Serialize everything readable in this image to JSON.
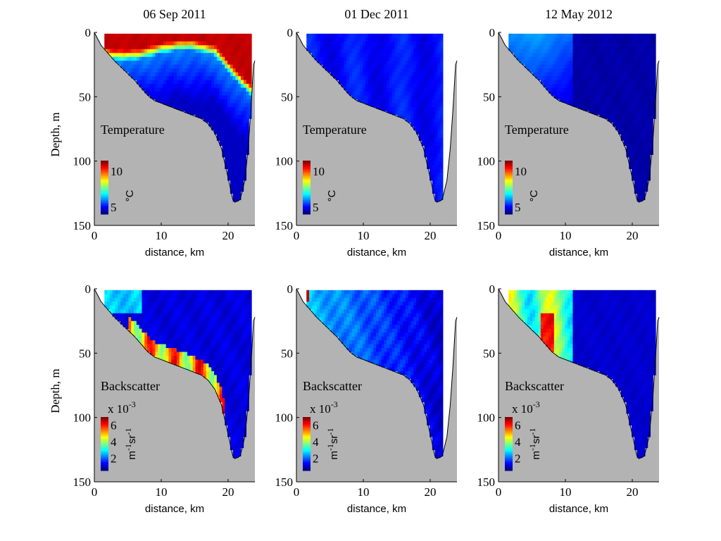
{
  "colors": {
    "land": "#b3b3b3",
    "nodata": "#ffffff",
    "colormap": "jet"
  },
  "chart_data": [
    {
      "type": "heatmap",
      "row": 0,
      "col": 0,
      "title": "06 Sep 2011",
      "variable": "temperature",
      "panel_label": "Temperature",
      "xlabel": "distance, km",
      "ylabel": "Depth, m",
      "xlim": [
        0,
        24
      ],
      "ylim": [
        150,
        0
      ],
      "xticks": [
        "0",
        "10",
        "20"
      ],
      "yticks": [
        "0",
        "50",
        "100",
        "150"
      ],
      "colorbar": {
        "ticks": [
          "10",
          "5"
        ],
        "tick_values": [
          10,
          5
        ],
        "range": [
          4,
          11.5
        ],
        "unit": "°C",
        "multiplier": "",
        "multiplier_exp": ""
      },
      "data_extent_km": [
        1.5,
        23.2
      ],
      "samples": [
        {
          "x": 5,
          "z": 5,
          "v": 11
        },
        {
          "x": 12,
          "z": 5,
          "v": 11
        },
        {
          "x": 20,
          "z": 5,
          "v": 11
        },
        {
          "x": 10,
          "z": 12,
          "v": 8
        },
        {
          "x": 10,
          "z": 20,
          "v": 6
        },
        {
          "x": 15,
          "z": 40,
          "v": 5.2
        },
        {
          "x": 20,
          "z": 80,
          "v": 4.8
        },
        {
          "x": 21,
          "z": 120,
          "v": 4.6
        }
      ]
    },
    {
      "type": "heatmap",
      "row": 0,
      "col": 1,
      "title": "01 Dec 2011",
      "variable": "temperature",
      "panel_label": "Temperature",
      "xlabel": "distance, km",
      "ylabel": "",
      "xlim": [
        0,
        24
      ],
      "ylim": [
        150,
        0
      ],
      "xticks": [
        "0",
        "10",
        "20"
      ],
      "yticks": [
        "0",
        "50",
        "100",
        "150"
      ],
      "colorbar": {
        "ticks": [
          "10",
          "5"
        ],
        "tick_values": [
          10,
          5
        ],
        "range": [
          4,
          11.5
        ],
        "unit": "°C",
        "multiplier": "",
        "multiplier_exp": ""
      },
      "data_extent_km": [
        1.5,
        21.8
      ],
      "samples": [
        {
          "x": 5,
          "z": 10,
          "v": 5.2
        },
        {
          "x": 12,
          "z": 30,
          "v": 5.0
        },
        {
          "x": 18,
          "z": 60,
          "v": 4.9
        },
        {
          "x": 21,
          "z": 110,
          "v": 4.8
        }
      ]
    },
    {
      "type": "heatmap",
      "row": 0,
      "col": 2,
      "title": "12 May 2012",
      "variable": "temperature",
      "panel_label": "Temperature",
      "xlabel": "distance, km",
      "ylabel": "",
      "xlim": [
        0,
        24
      ],
      "ylim": [
        150,
        0
      ],
      "xticks": [
        "0",
        "10",
        "20"
      ],
      "yticks": [
        "0",
        "50",
        "100",
        "150"
      ],
      "colorbar": {
        "ticks": [
          "10",
          "5"
        ],
        "tick_values": [
          10,
          5
        ],
        "range": [
          4,
          11.5
        ],
        "unit": "°C",
        "multiplier": "",
        "multiplier_exp": ""
      },
      "data_extent_km": [
        1.5,
        23.2
      ],
      "samples": [
        {
          "x": 4,
          "z": 10,
          "v": 6.0
        },
        {
          "x": 8,
          "z": 20,
          "v": 5.6
        },
        {
          "x": 15,
          "z": 40,
          "v": 4.8
        },
        {
          "x": 21,
          "z": 110,
          "v": 4.6
        }
      ]
    },
    {
      "type": "heatmap",
      "row": 1,
      "col": 0,
      "title": "",
      "variable": "backscatter",
      "panel_label": "Backscatter",
      "xlabel": "distance, km",
      "ylabel": "Depth, m",
      "xlim": [
        0,
        24
      ],
      "ylim": [
        150,
        0
      ],
      "xticks": [
        "0",
        "10",
        "20"
      ],
      "yticks": [
        "0",
        "50",
        "100",
        "150"
      ],
      "colorbar": {
        "ticks": [
          "6",
          "4",
          "2"
        ],
        "tick_values": [
          6,
          4,
          2
        ],
        "range": [
          0.5,
          7
        ],
        "unit": "m",
        "unit_sup1": "-1",
        "unit_mid": "sr",
        "unit_sup2": "-1",
        "multiplier": "x 10",
        "multiplier_exp": "-3"
      },
      "data_extent_km": [
        1.5,
        23.2
      ],
      "samples": [
        {
          "x": 4,
          "z": 10,
          "v": 2.4
        },
        {
          "x": 10,
          "z": 20,
          "v": 1.3
        },
        {
          "x": 9,
          "z": 45,
          "v": 6.2
        },
        {
          "x": 15,
          "z": 60,
          "v": 5.0
        },
        {
          "x": 18,
          "z": 70,
          "v": 6.0
        },
        {
          "x": 21,
          "z": 110,
          "v": 1.2
        }
      ]
    },
    {
      "type": "heatmap",
      "row": 1,
      "col": 1,
      "title": "",
      "variable": "backscatter",
      "panel_label": "Backscatter",
      "xlabel": "distance, km",
      "ylabel": "",
      "xlim": [
        0,
        24
      ],
      "ylim": [
        150,
        0
      ],
      "xticks": [
        "0",
        "10",
        "20"
      ],
      "yticks": [
        "0",
        "50",
        "100",
        "150"
      ],
      "colorbar": {
        "ticks": [
          "6",
          "4",
          "2"
        ],
        "tick_values": [
          6,
          4,
          2
        ],
        "range": [
          0.5,
          7
        ],
        "unit": "m",
        "unit_sup1": "-1",
        "unit_mid": "sr",
        "unit_sup2": "-1",
        "multiplier": "x 10",
        "multiplier_exp": "-3"
      },
      "data_extent_km": [
        1.5,
        21.8
      ],
      "samples": [
        {
          "x": 1.5,
          "z": 5,
          "v": 6.5
        },
        {
          "x": 4,
          "z": 20,
          "v": 2.6
        },
        {
          "x": 10,
          "z": 30,
          "v": 1.6
        },
        {
          "x": 18,
          "z": 60,
          "v": 1.2
        }
      ]
    },
    {
      "type": "heatmap",
      "row": 1,
      "col": 2,
      "title": "",
      "variable": "backscatter",
      "panel_label": "Backscatter",
      "xlabel": "distance, km",
      "ylabel": "",
      "xlim": [
        0,
        24
      ],
      "ylim": [
        150,
        0
      ],
      "xticks": [
        "0",
        "10",
        "20"
      ],
      "yticks": [
        "0",
        "50",
        "100",
        "150"
      ],
      "colorbar": {
        "ticks": [
          "6",
          "4",
          "2"
        ],
        "tick_values": [
          6,
          4,
          2
        ],
        "range": [
          0.5,
          7
        ],
        "unit": "m",
        "unit_sup1": "-1",
        "unit_mid": "sr",
        "unit_sup2": "-1",
        "multiplier": "x 10",
        "multiplier_exp": "-3"
      },
      "data_extent_km": [
        1.5,
        23.2
      ],
      "samples": [
        {
          "x": 3,
          "z": 15,
          "v": 2.8
        },
        {
          "x": 8,
          "z": 15,
          "v": 4.6
        },
        {
          "x": 7.5,
          "z": 30,
          "v": 6.0
        },
        {
          "x": 9,
          "z": 30,
          "v": 5.0
        },
        {
          "x": 15,
          "z": 40,
          "v": 1.2
        }
      ]
    }
  ]
}
